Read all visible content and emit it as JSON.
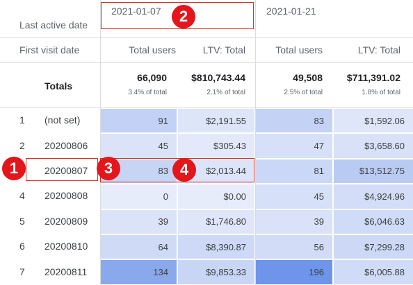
{
  "header": {
    "dim_label": "Last active date",
    "col_groups": [
      "2021-01-07",
      "2021-01-21"
    ],
    "row_dim_label": "First visit date",
    "metric_a": "Total users",
    "metric_b": "LTV: Total"
  },
  "totals": {
    "label": "Totals",
    "g1_users": "66,090",
    "g1_users_pct": "3.4% of total",
    "g1_ltv": "$810,743.44",
    "g1_ltv_pct": "2.1% of total",
    "g2_users": "49,508",
    "g2_users_pct": "2.5% of total",
    "g2_ltv": "$711,391.02",
    "g2_ltv_pct": "1.8% of total"
  },
  "rows": [
    {
      "idx": "1",
      "date": "(not set)",
      "u1": "91",
      "l1": "$2,191.55",
      "u2": "83",
      "l2": "$1,592.06"
    },
    {
      "idx": "2",
      "date": "20200806",
      "u1": "45",
      "l1": "$305.43",
      "u2": "47",
      "l2": "$3,658.60"
    },
    {
      "idx": "3",
      "date": "20200807",
      "u1": "83",
      "l1": "$2,013.44",
      "u2": "81",
      "l2": "$13,512.75"
    },
    {
      "idx": "4",
      "date": "20200808",
      "u1": "0",
      "l1": "$0.00",
      "u2": "45",
      "l2": "$4,924.96"
    },
    {
      "idx": "5",
      "date": "20200809",
      "u1": "39",
      "l1": "$1,746.80",
      "u2": "39",
      "l2": "$6,046.63"
    },
    {
      "idx": "6",
      "date": "20200810",
      "u1": "64",
      "l1": "$8,390.87",
      "u2": "56",
      "l2": "$7,299.28"
    },
    {
      "idx": "7",
      "date": "20200811",
      "u1": "134",
      "l1": "$9,853.33",
      "u2": "196",
      "l2": "$6,005.88"
    }
  ],
  "heat": {
    "rows": [
      [
        "#c2d1f5",
        "#dde5f9",
        "#c4d2f5",
        "#dfe6f9"
      ],
      [
        "#dae3f8",
        "#e3e9fa",
        "#d6e0f8",
        "#d8e1f8"
      ],
      [
        "#c7d5f5",
        "#dce4f9",
        "#cbd7f6",
        "#bacbf3"
      ],
      [
        "#e6ecfa",
        "#e6ecfa",
        "#d6e0f8",
        "#d3ddf7"
      ],
      [
        "#dbe3f8",
        "#dfe6f9",
        "#d9e2f8",
        "#d0dbf7"
      ],
      [
        "#cfdbf6",
        "#cdd9f6",
        "#d2dcf7",
        "#cdd8f6"
      ],
      [
        "#8aa9ec",
        "#c8d5f5",
        "#6e95e9",
        "#d0dbf7"
      ]
    ]
  },
  "annotations": [
    "1",
    "2",
    "3",
    "4"
  ]
}
